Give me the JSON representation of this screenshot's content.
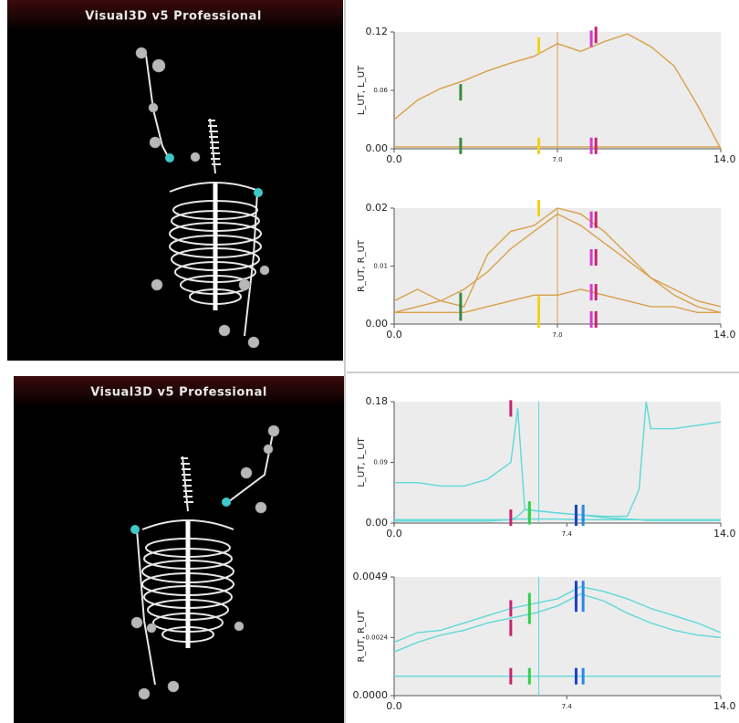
{
  "viewports": [
    {
      "title": "Visual3D v5 Professional"
    },
    {
      "title": "Visual3D v5 Professional"
    }
  ],
  "chart_data": [
    {
      "type": "line",
      "ylabel": "L_UT, L_UT",
      "x": [
        0,
        1,
        2,
        3,
        4,
        5,
        6,
        7,
        8,
        9,
        10,
        11,
        12,
        13,
        14
      ],
      "series": [
        {
          "color": "#d9a04a",
          "values": [
            0.03,
            0.05,
            0.062,
            0.07,
            0.08,
            0.088,
            0.095,
            0.108,
            0.1,
            0.11,
            0.118,
            0.105,
            0.085,
            0.045,
            0.0
          ]
        },
        {
          "color": "#d9a04a",
          "values": [
            0.002,
            0.002,
            0.002,
            0.002,
            0.002,
            0.002,
            0.002,
            0.002,
            0.002,
            0.002,
            0.002,
            0.002,
            0.002,
            0.002,
            0.002
          ]
        }
      ],
      "markers": [
        {
          "color": "#3a8a3a",
          "x": 2.85,
          "y": [
            0.058,
            0.003
          ]
        },
        {
          "color": "#f2d21b",
          "x": 6.2,
          "y": [
            0.106,
            0.003
          ]
        },
        {
          "color": "#d23cc8",
          "x": 8.45,
          "y": [
            0.113,
            0.003
          ]
        },
        {
          "color": "#c8246e",
          "x": 8.65,
          "y": [
            0.117,
            0.003
          ]
        }
      ],
      "cursor": 7.0,
      "xlim": [
        0,
        14
      ],
      "xticks": [
        {
          "value": 0,
          "label": "0.0"
        },
        {
          "value": 7,
          "label": "7.0"
        },
        {
          "value": 14,
          "label": "14.0"
        }
      ],
      "ylim": [
        0,
        0.12
      ],
      "yticks": [
        {
          "value": 0,
          "label": "0.00"
        },
        0.06,
        0.12
      ]
    },
    {
      "type": "line",
      "ylabel": "R_UT, R_UT",
      "x": [
        0,
        1,
        2,
        3,
        4,
        5,
        6,
        7,
        8,
        9,
        10,
        11,
        12,
        13,
        14
      ],
      "series": [
        {
          "color": "#d9a04a",
          "values": [
            0.004,
            0.006,
            0.004,
            0.003,
            0.012,
            0.016,
            0.017,
            0.02,
            0.019,
            0.016,
            0.012,
            0.008,
            0.006,
            0.004,
            0.003
          ]
        },
        {
          "color": "#d9a04a",
          "values": [
            0.002,
            0.003,
            0.004,
            0.006,
            0.009,
            0.013,
            0.016,
            0.019,
            0.017,
            0.014,
            0.011,
            0.008,
            0.005,
            0.003,
            0.002
          ]
        },
        {
          "color": "#d9a04a",
          "values": [
            0.002,
            0.002,
            0.002,
            0.002,
            0.003,
            0.004,
            0.005,
            0.005,
            0.006,
            0.005,
            0.004,
            0.003,
            0.003,
            0.002,
            0.002
          ]
        }
      ],
      "markers": [
        {
          "color": "#3a8a3a",
          "x": 2.85,
          "y": [
            0.004,
            0.002
          ]
        },
        {
          "color": "#f2d21b",
          "x": 6.2,
          "y": [
            0.02,
            0.0034,
            0.0008
          ]
        },
        {
          "color": "#d23cc8",
          "x": 8.45,
          "y": [
            0.018,
            0.0115,
            0.0055,
            0.0008
          ]
        },
        {
          "color": "#c8246e",
          "x": 8.65,
          "y": [
            0.018,
            0.0115,
            0.0055,
            0.0008
          ]
        }
      ],
      "cursor": 7.0,
      "xlim": [
        0,
        14
      ],
      "xticks": [
        {
          "value": 0,
          "label": "0.0"
        },
        {
          "value": 7,
          "label": "7.0"
        },
        {
          "value": 14,
          "label": "14.0"
        }
      ],
      "ylim": [
        0,
        0.02
      ],
      "yticks": [
        {
          "value": 0,
          "label": "0.00"
        },
        0.01,
        0.02
      ]
    },
    {
      "type": "line",
      "ylabel": "L_UT, L_UT",
      "x": [
        0,
        1,
        2,
        3,
        4,
        5,
        5.3,
        5.6,
        7,
        8,
        9,
        10,
        10.5,
        10.8,
        11,
        12,
        13,
        14
      ],
      "series": [
        {
          "color": "#5fd8d8",
          "values": [
            0.06,
            0.06,
            0.055,
            0.055,
            0.065,
            0.09,
            0.17,
            0.02,
            0.015,
            0.012,
            0.01,
            0.01,
            0.05,
            0.18,
            0.14,
            0.14,
            0.145,
            0.15
          ]
        },
        {
          "color": "#5fd8d8",
          "values": [
            0.005,
            0.005,
            0.005,
            0.005,
            0.005,
            0.005,
            0.006,
            0.006,
            0.006,
            0.005,
            0.005,
            0.005,
            0.005,
            0.005,
            0.005,
            0.005,
            0.005,
            0.005
          ]
        },
        {
          "color": "#5fd8d8",
          "values": [
            0.003,
            0.003,
            0.003,
            0.003,
            0.003,
            0.005,
            0.01,
            0.02,
            0.015,
            0.012,
            0.008,
            0.006,
            0.005,
            0.004,
            0.004,
            0.004,
            0.004,
            0.004
          ]
        }
      ],
      "markers": [
        {
          "color": "#c8246e",
          "x": 5.0,
          "y": [
            0.17,
            0.008
          ]
        },
        {
          "color": "#2fd04a",
          "x": 5.8,
          "y": [
            0.02,
            0.01
          ]
        },
        {
          "color": "#2040c0",
          "x": 7.8,
          "y": [
            0.015,
            0.008
          ]
        },
        {
          "color": "#2a8ae0",
          "x": 8.1,
          "y": [
            0.015,
            0.008
          ]
        }
      ],
      "cursor": 6.2,
      "xlim": [
        0,
        14
      ],
      "xticks": [
        {
          "value": 0,
          "label": "0.0"
        },
        7.4,
        {
          "value": 14,
          "label": "14.0"
        }
      ],
      "ylim": [
        0,
        0.18
      ],
      "yticks": [
        {
          "value": 0,
          "label": "0.00"
        },
        0.09,
        0.18
      ]
    },
    {
      "type": "line",
      "ylabel": "R_UT, R_UT",
      "x": [
        0,
        1,
        2,
        3,
        4,
        5,
        6,
        7,
        8,
        9,
        10,
        11,
        12,
        13,
        14
      ],
      "series": [
        {
          "color": "#5fd8d8",
          "values": [
            0.0022,
            0.0026,
            0.0027,
            0.003,
            0.0033,
            0.0036,
            0.0038,
            0.004,
            0.0045,
            0.0043,
            0.004,
            0.0036,
            0.0033,
            0.003,
            0.0026
          ]
        },
        {
          "color": "#5fd8d8",
          "values": [
            0.0018,
            0.0022,
            0.0025,
            0.0027,
            0.003,
            0.0032,
            0.0034,
            0.0037,
            0.0042,
            0.0039,
            0.0034,
            0.003,
            0.0027,
            0.0025,
            0.0024
          ]
        },
        {
          "color": "#5fd8d8",
          "values": [
            0.0008,
            0.0008,
            0.0008,
            0.0008,
            0.0008,
            0.0008,
            0.0008,
            0.0008,
            0.0008,
            0.0008,
            0.0008,
            0.0008,
            0.0008,
            0.0008,
            0.0008
          ]
        }
      ],
      "markers": [
        {
          "color": "#c8246e",
          "x": 5.0,
          "y": [
            0.0036,
            0.0028,
            0.0008
          ]
        },
        {
          "color": "#2fd04a",
          "x": 5.8,
          "y": [
            0.0039,
            0.0033,
            0.0008
          ]
        },
        {
          "color": "#2040c0",
          "x": 7.8,
          "y": [
            0.0044,
            0.0038,
            0.0008
          ]
        },
        {
          "color": "#2a8ae0",
          "x": 8.1,
          "y": [
            0.0044,
            0.0038,
            0.0008
          ]
        }
      ],
      "cursor": 6.2,
      "xlim": [
        0,
        14
      ],
      "xticks": [
        {
          "value": 0,
          "label": "0.0"
        },
        7.4,
        {
          "value": 14,
          "label": "14.0"
        }
      ],
      "ylim": [
        0,
        0.0049
      ],
      "yticks": [
        {
          "value": 0,
          "label": "0.0000"
        },
        0.0024,
        0.0049
      ]
    }
  ]
}
